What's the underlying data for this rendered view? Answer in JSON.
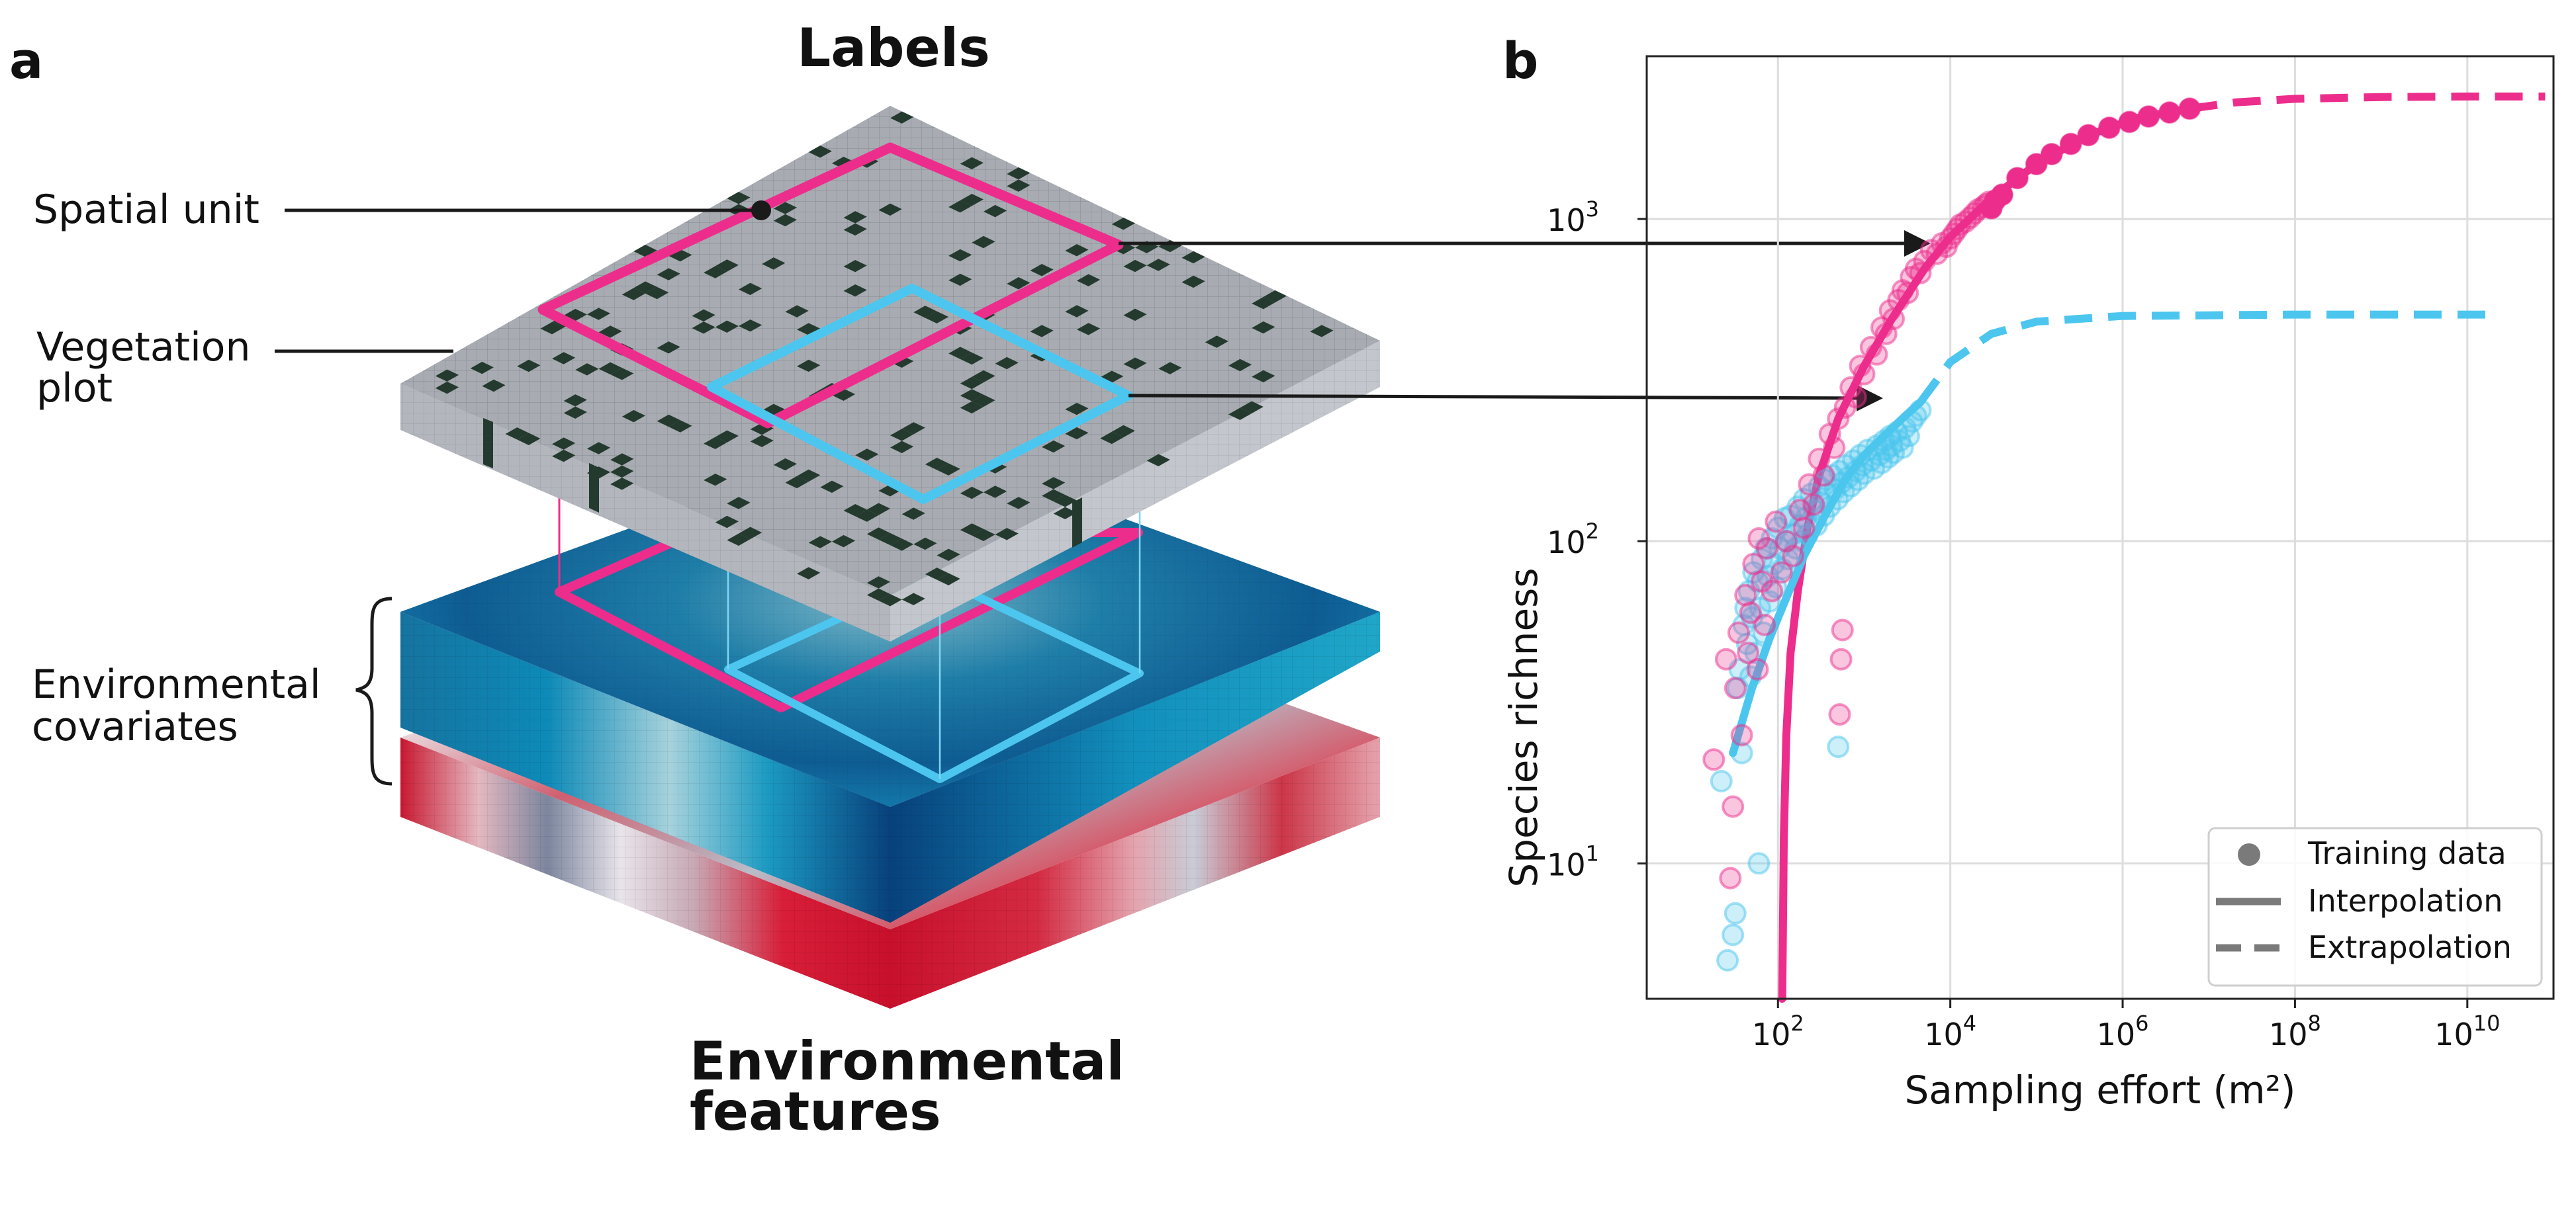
{
  "panel_a": {
    "letter": "a",
    "labels_heading": "Labels",
    "features_heading": [
      "Environmental",
      "features"
    ],
    "callouts": {
      "spatial_unit": "Spatial unit",
      "vegetation_plot": [
        "Vegetation",
        "plot"
      ],
      "environmental_covariates": [
        "Environmental",
        "covariates"
      ]
    },
    "colors": {
      "pink_unit": "#ec2d8c",
      "blue_unit": "#4cc6ee",
      "label_grid": "#a8acb2",
      "vegetation_cell": "#243a2e",
      "blue_layer": "#1b7fae",
      "red_layer": "#d81e38"
    }
  },
  "panel_b": {
    "letter": "b",
    "colors": {
      "pink": "#ec2d8c",
      "blue": "#4cc6ee"
    }
  },
  "chart_data": {
    "type": "scatter",
    "title": "",
    "xlabel": "Sampling effort (m²)",
    "ylabel": "Species richness",
    "xscale": "log",
    "yscale": "log",
    "xlim": [
      3,
      100000000000.0
    ],
    "ylim": [
      3.8,
      3200
    ],
    "grid": true,
    "legend_position": "bottom-right",
    "xticks": [
      {
        "value": 100,
        "base": "10",
        "exp": "2"
      },
      {
        "value": 10000,
        "base": "10",
        "exp": "4"
      },
      {
        "value": 1000000,
        "base": "10",
        "exp": "6"
      },
      {
        "value": 100000000,
        "base": "10",
        "exp": "8"
      },
      {
        "value": 10000000000,
        "base": "10",
        "exp": "10"
      }
    ],
    "yticks": [
      {
        "value": 10,
        "base": "10",
        "exp": "1"
      },
      {
        "value": 100,
        "base": "10",
        "exp": "2"
      },
      {
        "value": 1000,
        "base": "10",
        "exp": "3"
      }
    ],
    "legend": [
      {
        "marker": "dot",
        "label": "Training data"
      },
      {
        "marker": "solid",
        "label": "Interpolation"
      },
      {
        "marker": "dash",
        "label": "Extrapolation"
      }
    ],
    "series": [
      {
        "color": "#ec2d8c",
        "training_points": [
          [
            18,
            21
          ],
          [
            25,
            43
          ],
          [
            28,
            9
          ],
          [
            30,
            15
          ],
          [
            32,
            35
          ],
          [
            35,
            52
          ],
          [
            38,
            25
          ],
          [
            42,
            68
          ],
          [
            45,
            45
          ],
          [
            48,
            60
          ],
          [
            52,
            85
          ],
          [
            58,
            40
          ],
          [
            60,
            102
          ],
          [
            65,
            75
          ],
          [
            70,
            55
          ],
          [
            75,
            95
          ],
          [
            85,
            70
          ],
          [
            95,
            115
          ],
          [
            110,
            80
          ],
          [
            125,
            100
          ],
          [
            150,
            90
          ],
          [
            180,
            125
          ],
          [
            200,
            110
          ],
          [
            230,
            150
          ],
          [
            260,
            130
          ],
          [
            300,
            180
          ],
          [
            340,
            160
          ],
          [
            400,
            215
          ],
          [
            450,
            195
          ],
          [
            500,
            240
          ],
          [
            520,
            29
          ],
          [
            540,
            43
          ],
          [
            560,
            53
          ],
          [
            600,
            260
          ],
          [
            700,
            300
          ],
          [
            800,
            280
          ],
          [
            900,
            350
          ],
          [
            1000,
            330
          ],
          [
            1200,
            400
          ],
          [
            1400,
            380
          ],
          [
            1600,
            460
          ],
          [
            1800,
            440
          ],
          [
            2000,
            520
          ],
          [
            2200,
            490
          ],
          [
            2500,
            560
          ],
          [
            2800,
            600
          ],
          [
            3200,
            590
          ],
          [
            3500,
            660
          ],
          [
            4000,
            700
          ],
          [
            4500,
            680
          ],
          [
            5000,
            740
          ],
          [
            6000,
            800
          ],
          [
            7000,
            780
          ],
          [
            8000,
            840
          ],
          [
            9000,
            820
          ],
          [
            10000,
            870
          ],
          [
            11000,
            900
          ],
          [
            12000,
            930
          ],
          [
            13000,
            960
          ],
          [
            15000,
            980
          ],
          [
            17000,
            1010
          ],
          [
            19000,
            1040
          ],
          [
            21000,
            1070
          ],
          [
            24000,
            1090
          ],
          [
            26000,
            1110
          ],
          [
            28000,
            1130
          ],
          [
            30000,
            1080
          ],
          [
            33000,
            1140
          ],
          [
            40000,
            1190
          ],
          [
            60000,
            1340
          ],
          [
            100000,
            1480
          ],
          [
            150000,
            1590
          ],
          [
            250000,
            1710
          ],
          [
            400000,
            1820
          ],
          [
            700000,
            1920
          ],
          [
            1200000,
            2000
          ],
          [
            2000000,
            2080
          ],
          [
            3500000,
            2140
          ],
          [
            6000000,
            2200
          ]
        ],
        "interpolation": [
          [
            112,
            3.8
          ],
          [
            114,
            6
          ],
          [
            117,
            12
          ],
          [
            125,
            25
          ],
          [
            140,
            45
          ],
          [
            170,
            70
          ],
          [
            220,
            110
          ],
          [
            300,
            160
          ],
          [
            500,
            240
          ],
          [
            1000,
            350
          ],
          [
            2000,
            480
          ],
          [
            5000,
            700
          ],
          [
            10000,
            880
          ],
          [
            30000,
            1160
          ],
          [
            100000,
            1480
          ],
          [
            400000,
            1820
          ],
          [
            1500000,
            2060
          ],
          [
            6000000,
            2200
          ]
        ],
        "extrapolation": [
          [
            6000000,
            2200
          ],
          [
            20000000,
            2300
          ],
          [
            100000000,
            2360
          ],
          [
            1000000000,
            2390
          ],
          [
            10000000000,
            2400
          ],
          [
            80000000000,
            2400
          ]
        ]
      },
      {
        "color": "#4cc6ee",
        "training_points": [
          [
            22,
            18
          ],
          [
            26,
            5
          ],
          [
            30,
            6
          ],
          [
            32,
            7
          ],
          [
            34,
            35
          ],
          [
            36,
            40
          ],
          [
            38,
            22
          ],
          [
            40,
            55
          ],
          [
            42,
            62
          ],
          [
            44,
            48
          ],
          [
            46,
            70
          ],
          [
            48,
            38
          ],
          [
            50,
            58
          ],
          [
            52,
            80
          ],
          [
            55,
            45
          ],
          [
            58,
            75
          ],
          [
            60,
            10
          ],
          [
            62,
            62
          ],
          [
            65,
            88
          ],
          [
            68,
            52
          ],
          [
            72,
            95
          ],
          [
            76,
            78
          ],
          [
            80,
            65
          ],
          [
            85,
            102
          ],
          [
            90,
            85
          ],
          [
            95,
            72
          ],
          [
            100,
            110
          ],
          [
            105,
            95
          ],
          [
            112,
            82
          ],
          [
            120,
            118
          ],
          [
            125,
            100
          ],
          [
            130,
            88
          ],
          [
            140,
            120
          ],
          [
            150,
            105
          ],
          [
            160,
            95
          ],
          [
            170,
            128
          ],
          [
            180,
            112
          ],
          [
            190,
            100
          ],
          [
            200,
            135
          ],
          [
            210,
            118
          ],
          [
            220,
            105
          ],
          [
            240,
            140
          ],
          [
            260,
            125
          ],
          [
            280,
            112
          ],
          [
            300,
            148
          ],
          [
            320,
            132
          ],
          [
            340,
            120
          ],
          [
            360,
            155
          ],
          [
            380,
            140
          ],
          [
            400,
            128
          ],
          [
            430,
            160
          ],
          [
            460,
            145
          ],
          [
            490,
            135
          ],
          [
            500,
            23
          ],
          [
            520,
            165
          ],
          [
            550,
            152
          ],
          [
            580,
            142
          ],
          [
            620,
            172
          ],
          [
            660,
            158
          ],
          [
            700,
            148
          ],
          [
            750,
            178
          ],
          [
            800,
            165
          ],
          [
            850,
            155
          ],
          [
            900,
            185
          ],
          [
            950,
            172
          ],
          [
            1000,
            162
          ],
          [
            1100,
            192
          ],
          [
            1200,
            178
          ],
          [
            1300,
            168
          ],
          [
            1400,
            198
          ],
          [
            1500,
            185
          ],
          [
            1600,
            175
          ],
          [
            1700,
            205
          ],
          [
            1800,
            192
          ],
          [
            1900,
            182
          ],
          [
            2000,
            212
          ],
          [
            2100,
            198
          ],
          [
            2200,
            188
          ],
          [
            2400,
            218
          ],
          [
            2600,
            205
          ],
          [
            2800,
            195
          ],
          [
            3000,
            225
          ],
          [
            3300,
            212
          ],
          [
            3600,
            235
          ],
          [
            4000,
            245
          ],
          [
            4500,
            255
          ]
        ],
        "interpolation": [
          [
            30,
            22
          ],
          [
            50,
            35
          ],
          [
            80,
            50
          ],
          [
            120,
            65
          ],
          [
            200,
            90
          ],
          [
            350,
            120
          ],
          [
            600,
            155
          ],
          [
            1000,
            185
          ],
          [
            1800,
            215
          ],
          [
            3000,
            245
          ],
          [
            4500,
            270
          ]
        ],
        "extrapolation": [
          [
            4500,
            270
          ],
          [
            10000,
            360
          ],
          [
            30000,
            440
          ],
          [
            100000,
            480
          ],
          [
            1000000,
            500
          ],
          [
            100000000,
            505
          ],
          [
            20000000000,
            505
          ]
        ]
      }
    ]
  }
}
